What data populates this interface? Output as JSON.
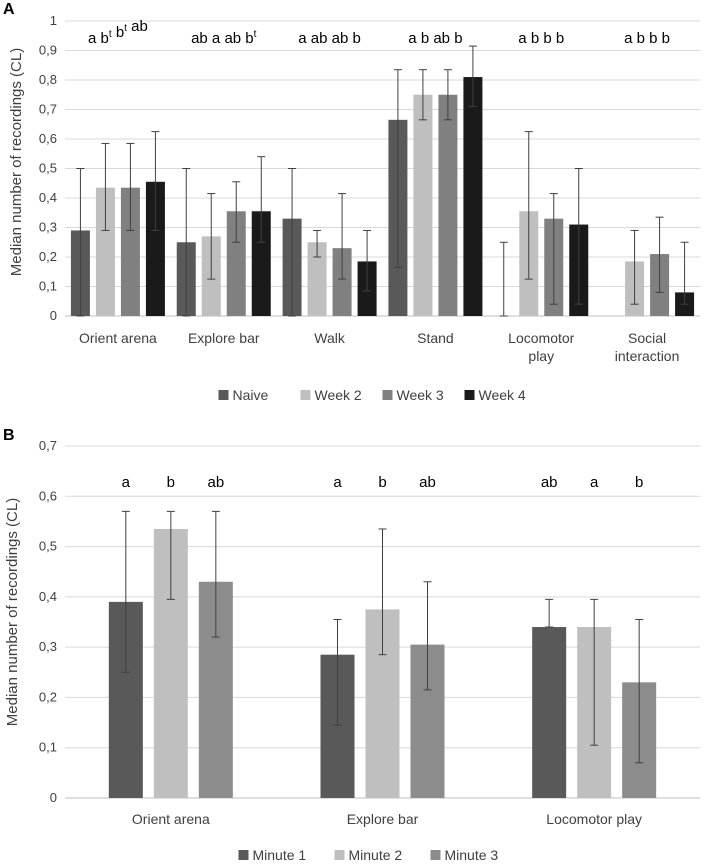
{
  "panel_a": {
    "letter": "A",
    "ylabel": "Median number of recordings (CL)",
    "yticks": [
      "0",
      "0,1",
      "0,2",
      "0,3",
      "0,4",
      "0,5",
      "0,6",
      "0,7",
      "0,8",
      "0,9",
      "1"
    ],
    "categories": [
      {
        "lines": [
          "Orient arena"
        ],
        "sig": [
          [
            "a",
            ""
          ],
          [
            "b",
            "t"
          ],
          [
            "b",
            "t"
          ],
          [
            "ab",
            ""
          ]
        ]
      },
      {
        "lines": [
          "Explore bar"
        ],
        "sig": [
          [
            "ab",
            ""
          ],
          [
            "a",
            ""
          ],
          [
            "ab",
            ""
          ],
          [
            "b",
            "t"
          ]
        ]
      },
      {
        "lines": [
          "Walk"
        ],
        "sig": [
          [
            "a",
            ""
          ],
          [
            "ab",
            ""
          ],
          [
            "ab",
            ""
          ],
          [
            "b",
            ""
          ]
        ]
      },
      {
        "lines": [
          "Stand"
        ],
        "sig": [
          [
            "a",
            ""
          ],
          [
            "b",
            ""
          ],
          [
            "ab",
            ""
          ],
          [
            "b",
            ""
          ]
        ]
      },
      {
        "lines": [
          "Locomotor",
          "play"
        ],
        "sig": [
          [
            "a",
            ""
          ],
          [
            "b",
            ""
          ],
          [
            "b",
            ""
          ],
          [
            "b",
            ""
          ]
        ]
      },
      {
        "lines": [
          "Social",
          "interaction"
        ],
        "sig": [
          [
            "a",
            ""
          ],
          [
            "b",
            ""
          ],
          [
            "b",
            ""
          ],
          [
            "b",
            ""
          ]
        ]
      }
    ],
    "legend": [
      "Naive",
      "Week 2",
      "Week 3",
      "Week 4"
    ]
  },
  "panel_b": {
    "letter": "B",
    "ylabel": "Median number of recordings (CL)",
    "yticks": [
      "0",
      "0,1",
      "0,2",
      "0,3",
      "0,4",
      "0,5",
      "0,6",
      "0,7"
    ],
    "categories": [
      {
        "lines": [
          "Orient arena"
        ],
        "sig": [
          [
            "a",
            ""
          ],
          [
            "b",
            ""
          ],
          [
            "ab",
            ""
          ]
        ]
      },
      {
        "lines": [
          "Explore bar"
        ],
        "sig": [
          [
            "a",
            ""
          ],
          [
            "b",
            ""
          ],
          [
            "ab",
            ""
          ]
        ]
      },
      {
        "lines": [
          "Locomotor play"
        ],
        "sig": [
          [
            "ab",
            ""
          ],
          [
            "a",
            ""
          ],
          [
            "b",
            ""
          ]
        ]
      }
    ],
    "legend": [
      "Minute 1",
      "Minute 2",
      "Minute 3"
    ]
  },
  "chart_data": [
    {
      "type": "bar",
      "title": "",
      "panel": "A",
      "categories": [
        "Orient arena",
        "Explore bar",
        "Walk",
        "Stand",
        "Locomotor play",
        "Social interaction"
      ],
      "ylabel": "Median number of recordings (CL)",
      "xlabel": "",
      "ylim": [
        0,
        1
      ],
      "legend_position": "bottom",
      "grid": true,
      "series": [
        {
          "name": "Naive",
          "color": "#595959",
          "values": [
            0.29,
            0.25,
            0.33,
            0.665,
            0,
            0
          ],
          "err_low": [
            0,
            0,
            0,
            0.165,
            0,
            0
          ],
          "err_high": [
            0.5,
            0.5,
            0.5,
            0.835,
            0.25,
            0
          ]
        },
        {
          "name": "Week 2",
          "color": "#bfbfbf",
          "values": [
            0.435,
            0.27,
            0.25,
            0.75,
            0.355,
            0.185
          ],
          "err_low": [
            0.29,
            0.125,
            0.2,
            0.665,
            0.125,
            0.04
          ],
          "err_high": [
            0.585,
            0.415,
            0.29,
            0.835,
            0.625,
            0.29
          ]
        },
        {
          "name": "Week 3",
          "color": "#808080",
          "values": [
            0.435,
            0.355,
            0.23,
            0.75,
            0.33,
            0.21
          ],
          "err_low": [
            0.29,
            0.25,
            0.125,
            0.665,
            0.04,
            0.08
          ],
          "err_high": [
            0.585,
            0.455,
            0.415,
            0.835,
            0.415,
            0.335
          ]
        },
        {
          "name": "Week 4",
          "color": "#1a1a1a",
          "values": [
            0.455,
            0.355,
            0.185,
            0.81,
            0.31,
            0.08
          ],
          "err_low": [
            0.29,
            0.25,
            0.085,
            0.71,
            0.04,
            0.04
          ],
          "err_high": [
            0.625,
            0.54,
            0.29,
            0.915,
            0.5,
            0.25
          ]
        }
      ],
      "annotations": [
        [
          "a",
          "b^t",
          "b^t",
          "ab"
        ],
        [
          "ab",
          "a",
          "ab",
          "b^t"
        ],
        [
          "a",
          "ab",
          "ab",
          "b"
        ],
        [
          "a",
          "b",
          "ab",
          "b"
        ],
        [
          "a",
          "b",
          "b",
          "b"
        ],
        [
          "a",
          "b",
          "b",
          "b"
        ]
      ]
    },
    {
      "type": "bar",
      "title": "",
      "panel": "B",
      "categories": [
        "Orient arena",
        "Explore bar",
        "Locomotor play"
      ],
      "ylabel": "Median number of recordings (CL)",
      "xlabel": "",
      "ylim": [
        0,
        0.7
      ],
      "legend_position": "bottom",
      "grid": true,
      "series": [
        {
          "name": "Minute 1",
          "color": "#595959",
          "values": [
            0.39,
            0.285,
            0.34
          ],
          "err_low": [
            0.25,
            0.145,
            0.34
          ],
          "err_high": [
            0.57,
            0.355,
            0.395
          ]
        },
        {
          "name": "Minute 2",
          "color": "#bfbfbf",
          "values": [
            0.535,
            0.375,
            0.34
          ],
          "err_low": [
            0.395,
            0.285,
            0.105
          ],
          "err_high": [
            0.57,
            0.535,
            0.395
          ]
        },
        {
          "name": "Minute 3",
          "color": "#8c8c8c",
          "values": [
            0.43,
            0.305,
            0.23
          ],
          "err_low": [
            0.32,
            0.215,
            0.07
          ],
          "err_high": [
            0.57,
            0.43,
            0.355
          ]
        }
      ],
      "annotations": [
        [
          "a",
          "b",
          "ab"
        ],
        [
          "a",
          "b",
          "ab"
        ],
        [
          "ab",
          "a",
          "b"
        ]
      ]
    }
  ]
}
